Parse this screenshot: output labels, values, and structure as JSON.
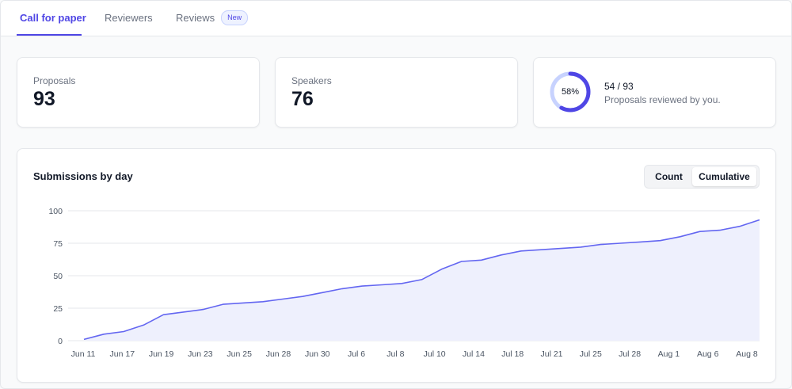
{
  "tabs": [
    {
      "label": "Call for paper",
      "active": true
    },
    {
      "label": "Reviewers",
      "active": false
    },
    {
      "label": "Reviews",
      "active": false,
      "badge": "New"
    }
  ],
  "stats": {
    "proposals": {
      "label": "Proposals",
      "value": "93"
    },
    "speakers": {
      "label": "Speakers",
      "value": "76"
    },
    "reviewed": {
      "percent_label": "58%",
      "percent": 0.58,
      "count": "54 / 93",
      "caption": "Proposals reviewed by you."
    }
  },
  "chart_section": {
    "title": "Submissions by day",
    "toggle": {
      "options": [
        "Count",
        "Cumulative"
      ],
      "selected": "Cumulative"
    }
  },
  "colors": {
    "accent": "#4f46e5",
    "line": "#6366f1",
    "area": "#eef0fd",
    "ring_track": "#c7d2fe"
  },
  "chart_data": {
    "type": "area",
    "title": "Submissions by day",
    "xlabel": "",
    "ylabel": "",
    "ylim": [
      0,
      100
    ],
    "y_ticks": [
      0,
      25,
      50,
      75,
      100
    ],
    "grid": true,
    "x_tick_labels": [
      "Jun 11",
      "Jun 17",
      "Jun 19",
      "Jun 23",
      "Jun 25",
      "Jun 28",
      "Jun 30",
      "Jul 6",
      "Jul 8",
      "Jul 10",
      "Jul 14",
      "Jul 18",
      "Jul 21",
      "Jul 25",
      "Jul 28",
      "Aug 1",
      "Aug 6",
      "Aug 8"
    ],
    "series": [
      {
        "values": [
          1,
          5,
          7,
          12,
          20,
          22,
          24,
          28,
          29,
          30,
          32,
          34,
          37,
          40,
          42,
          43,
          44,
          47,
          55,
          61,
          62,
          66,
          69,
          70,
          71,
          72,
          74,
          75,
          76,
          77,
          80,
          84,
          85,
          88,
          93
        ]
      }
    ]
  }
}
